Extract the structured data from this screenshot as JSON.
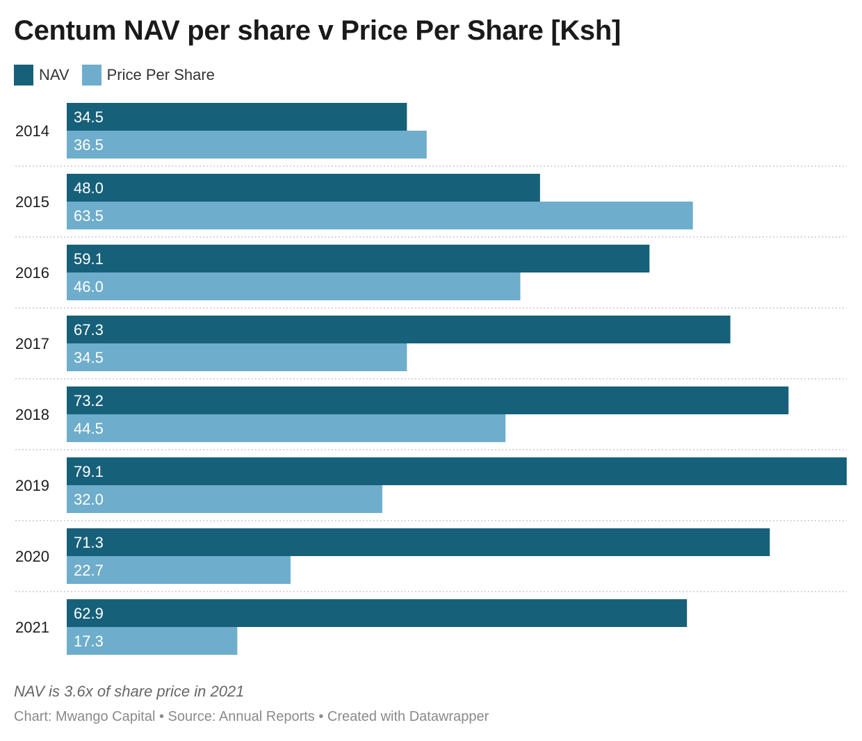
{
  "chart_data": {
    "type": "bar",
    "orientation": "horizontal",
    "title": "Centum NAV per share v Price Per Share [Ksh]",
    "categories": [
      "2014",
      "2015",
      "2016",
      "2017",
      "2018",
      "2019",
      "2020",
      "2021"
    ],
    "series": [
      {
        "name": "NAV",
        "color": "#17607a",
        "values": [
          34.5,
          48.0,
          59.1,
          67.3,
          73.2,
          79.1,
          71.3,
          62.9
        ]
      },
      {
        "name": "Price Per Share",
        "color": "#6eadcb",
        "values": [
          36.5,
          63.5,
          46.0,
          34.5,
          44.5,
          32.0,
          22.7,
          17.3
        ]
      }
    ],
    "xlim": [
      0,
      79.1
    ],
    "legend_position": "top-left",
    "data_labels": "inside bar start, one decimal",
    "grid": "dotted separators between years"
  },
  "footer": {
    "note": "NAV is 3.6x of share price in 2021",
    "credits": "Chart: Mwango Capital • Source: Annual Reports • Created with Datawrapper"
  }
}
